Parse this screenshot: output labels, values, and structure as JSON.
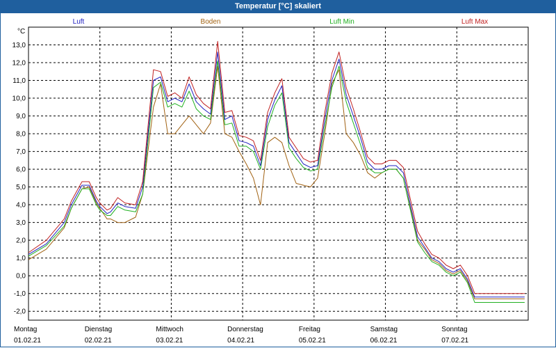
{
  "window": {
    "title": "Temperatur [°C] skaliert"
  },
  "chart_data": {
    "type": "line",
    "title": "Temperatur [°C] skaliert",
    "ylabel": "°C",
    "xlabel": "",
    "ylim": [
      -2.5,
      14.0
    ],
    "yticks": [
      -2.0,
      -1.0,
      0.0,
      1.0,
      2.0,
      3.0,
      4.0,
      5.0,
      6.0,
      7.0,
      8.0,
      9.0,
      10.0,
      11.0,
      12.0,
      13.0
    ],
    "ytick_labels": [
      "-2,0",
      "-1,0",
      "0,0",
      "1,0",
      "2,0",
      "3,0",
      "4,0",
      "5,0",
      "6,0",
      "7,0",
      "8,0",
      "9,0",
      "10,0",
      "11,0",
      "12,0",
      "13,0"
    ],
    "xlim": [
      0,
      7
    ],
    "grid": true,
    "legend_position": "top",
    "days": [
      {
        "weekday": "Montag",
        "date": "01.02.21"
      },
      {
        "weekday": "Dienstag",
        "date": "02.02.21"
      },
      {
        "weekday": "Mittwoch",
        "date": "03.02.21"
      },
      {
        "weekday": "Donnerstag",
        "date": "04.02.21"
      },
      {
        "weekday": "Freitag",
        "date": "05.02.21"
      },
      {
        "weekday": "Samstag",
        "date": "06.02.21"
      },
      {
        "weekday": "Sonntag",
        "date": "07.02.21"
      }
    ],
    "x": [
      0.0,
      0.25,
      0.5,
      0.6,
      0.75,
      0.85,
      0.95,
      1.0,
      1.1,
      1.15,
      1.25,
      1.35,
      1.5,
      1.6,
      1.75,
      1.85,
      1.95,
      2.05,
      2.15,
      2.25,
      2.35,
      2.45,
      2.55,
      2.65,
      2.75,
      2.85,
      2.95,
      3.05,
      3.15,
      3.25,
      3.35,
      3.45,
      3.55,
      3.65,
      3.75,
      3.85,
      3.95,
      4.05,
      4.15,
      4.25,
      4.35,
      4.45,
      4.55,
      4.65,
      4.75,
      4.85,
      4.95,
      5.05,
      5.15,
      5.25,
      5.35,
      5.45,
      5.55,
      5.65,
      5.75,
      5.85,
      5.95,
      6.05,
      6.15,
      6.25,
      6.35,
      6.45,
      6.55,
      6.65,
      6.75,
      6.85,
      6.95
    ],
    "series": [
      {
        "name": "Luft",
        "color": "#2020c0",
        "values": [
          1.2,
          1.8,
          3.0,
          4.0,
          5.1,
          5.1,
          4.2,
          3.9,
          3.5,
          3.6,
          4.1,
          3.9,
          3.8,
          5.0,
          11.0,
          11.2,
          9.8,
          10.0,
          9.8,
          10.8,
          9.8,
          9.4,
          9.1,
          12.6,
          8.8,
          9.0,
          7.6,
          7.5,
          7.3,
          6.2,
          8.8,
          9.9,
          10.7,
          7.5,
          6.9,
          6.3,
          6.1,
          6.2,
          8.8,
          11.0,
          12.2,
          10.2,
          9.0,
          7.8,
          6.4,
          6.0,
          6.0,
          6.2,
          6.2,
          5.8,
          4.0,
          2.2,
          1.6,
          1.0,
          0.8,
          0.4,
          0.2,
          0.4,
          -0.2,
          -1.2,
          -1.2,
          -1.2,
          -1.2,
          -1.2,
          -1.2,
          -1.2,
          -1.2
        ]
      },
      {
        "name": "Boden",
        "color": "#a06010",
        "values": [
          0.9,
          1.5,
          2.7,
          3.8,
          4.9,
          5.0,
          4.1,
          3.8,
          3.2,
          3.2,
          3.0,
          3.0,
          3.3,
          4.6,
          9.5,
          10.8,
          8.0,
          8.0,
          8.5,
          9.0,
          8.5,
          8.0,
          8.6,
          11.8,
          8.0,
          7.8,
          7.0,
          6.3,
          5.5,
          4.0,
          7.5,
          7.8,
          7.5,
          6.2,
          5.2,
          5.1,
          5.0,
          5.5,
          8.0,
          10.8,
          11.6,
          8.0,
          7.5,
          6.8,
          5.8,
          5.5,
          5.8,
          6.0,
          6.0,
          5.5,
          3.8,
          2.0,
          1.5,
          0.9,
          0.7,
          0.3,
          0.1,
          0.3,
          -0.3,
          -1.3,
          -1.3,
          -1.3,
          -1.3,
          -1.3,
          -1.3,
          -1.3,
          -1.3
        ]
      },
      {
        "name": "Luft Min",
        "color": "#20b020",
        "values": [
          1.1,
          1.7,
          2.8,
          3.8,
          4.9,
          4.9,
          4.0,
          3.7,
          3.4,
          3.4,
          3.9,
          3.7,
          3.6,
          4.6,
          10.6,
          10.9,
          9.5,
          9.7,
          9.5,
          10.4,
          9.4,
          9.0,
          8.8,
          12.1,
          8.5,
          8.6,
          7.3,
          7.3,
          7.0,
          6.0,
          8.4,
          9.6,
          10.3,
          7.2,
          6.6,
          6.1,
          5.9,
          6.0,
          8.4,
          10.6,
          11.8,
          9.8,
          8.6,
          7.4,
          6.1,
          5.8,
          5.8,
          6.0,
          6.0,
          5.5,
          3.7,
          1.9,
          1.3,
          0.8,
          0.6,
          0.2,
          0.0,
          0.2,
          -0.4,
          -1.5,
          -1.5,
          -1.5,
          -1.5,
          -1.5,
          -1.5,
          -1.5,
          -1.5
        ]
      },
      {
        "name": "Luft Max",
        "color": "#c02020",
        "values": [
          1.3,
          2.0,
          3.2,
          4.2,
          5.3,
          5.3,
          4.4,
          4.1,
          3.7,
          3.8,
          4.4,
          4.1,
          4.0,
          5.3,
          11.6,
          11.5,
          10.1,
          10.3,
          10.0,
          11.2,
          10.2,
          9.7,
          9.4,
          13.2,
          9.2,
          9.3,
          7.9,
          7.8,
          7.6,
          6.5,
          9.2,
          10.3,
          11.1,
          7.8,
          7.2,
          6.6,
          6.4,
          6.5,
          9.2,
          11.4,
          12.6,
          10.6,
          9.4,
          8.1,
          6.7,
          6.3,
          6.3,
          6.5,
          6.5,
          6.1,
          4.3,
          2.5,
          1.8,
          1.2,
          1.0,
          0.6,
          0.4,
          0.6,
          0.0,
          -1.0,
          -1.0,
          -1.0,
          -1.0,
          -1.0,
          -1.0,
          -1.0,
          -1.0
        ]
      }
    ]
  }
}
